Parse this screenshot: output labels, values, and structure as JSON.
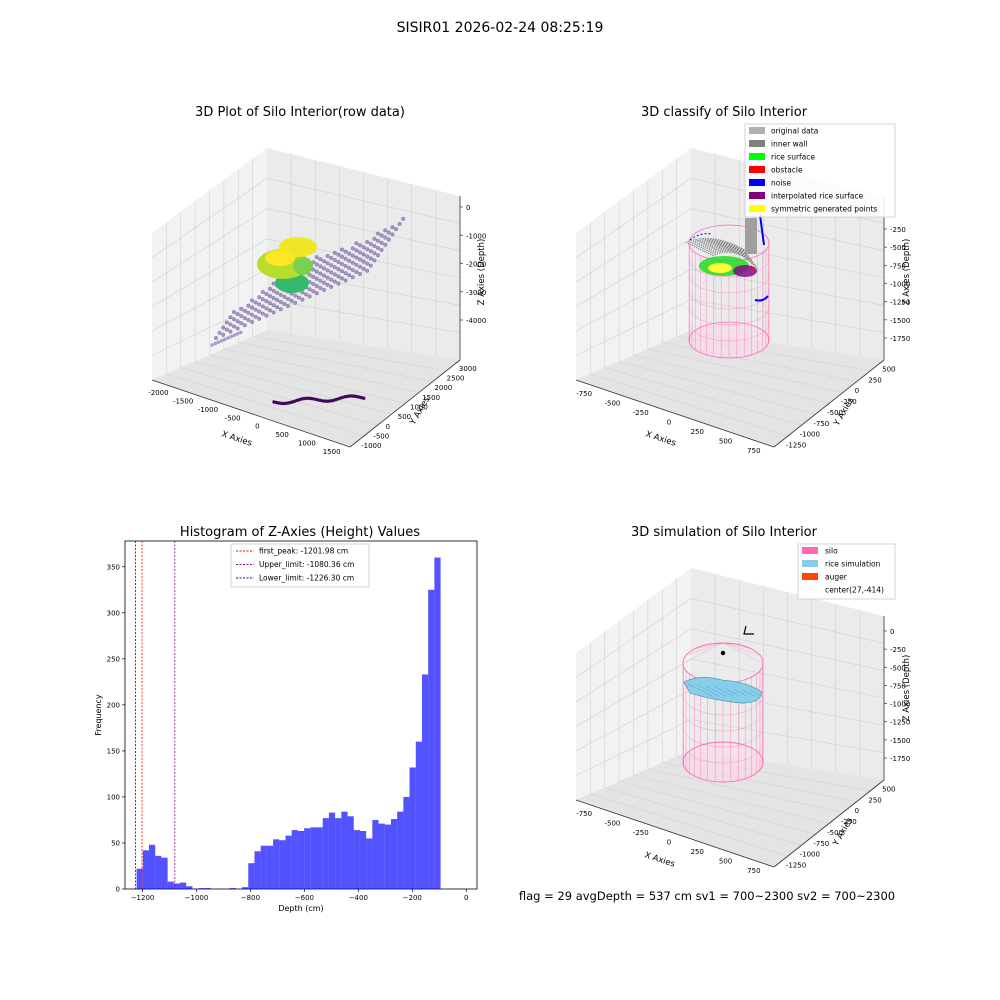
{
  "suptitle": "SISIR01 2026-02-24 08:25:19",
  "status_line": "flag = 29  avgDepth = 537 cm  sv1 = 700~2300  sv2 = 700~2300",
  "colors": {
    "silo": "#ff69b4",
    "rice_simulation": "#87ceeb",
    "auger": "#ff4500",
    "histogram_bar": "#0000ff",
    "first_peak": "#ff0000",
    "upper_limit": "#8b008b",
    "lower_limit": "#0000cd"
  },
  "chart_data": [
    {
      "type": "scatter",
      "title": "3D Plot of Silo Interior(row data)",
      "xlabel": "X Axies",
      "ylabel": "Y Axies",
      "zlabel": "Z Axies (Depth)",
      "x_ticks": [
        "-2000",
        "-1500",
        "-1000",
        "-500",
        "0",
        "500",
        "1000",
        "1500"
      ],
      "y_ticks": [
        "-1000",
        "-500",
        "0",
        "500",
        "1000",
        "1500",
        "2000",
        "2500",
        "3000"
      ],
      "z_ticks": [
        "0",
        "-1000",
        "-2000",
        "-3000",
        "-4000"
      ]
    },
    {
      "type": "scatter",
      "title": "3D classify of Silo Interior",
      "zlabel": "Z Axies (Depth)",
      "xlabel": "X Axies",
      "ylabel": "Y Axies",
      "x_ticks": [
        "-750",
        "-500",
        "-250",
        "0",
        "250",
        "500",
        "750"
      ],
      "y_ticks": [
        "-1250",
        "-1000",
        "-750",
        "-500",
        "-250",
        "0",
        "250",
        "500"
      ],
      "z_ticks": [
        "-250",
        "-500",
        "-750",
        "-1000",
        "-1250",
        "-1500",
        "-1750"
      ],
      "legend": [
        {
          "label": "original data",
          "color": "#b0b0b0"
        },
        {
          "label": "inner wall",
          "color": "#808080"
        },
        {
          "label": "rice surface",
          "color": "#00ff00"
        },
        {
          "label": "obstacle",
          "color": "#ff0000"
        },
        {
          "label": "noise",
          "color": "#0000ff"
        },
        {
          "label": "interpolated rice surface",
          "color": "#800080"
        },
        {
          "label": "symmetric generated points",
          "color": "#ffff00"
        }
      ]
    },
    {
      "type": "bar",
      "title": "Histogram of Z-Axies (Height) Values",
      "xlabel": "Depth (cm)",
      "ylabel": "Frequency",
      "xlim": [
        -1265,
        40
      ],
      "ylim": [
        0,
        378
      ],
      "x_ticks": [
        "-1200",
        "-1000",
        "-800",
        "-600",
        "-400",
        "-200",
        "0"
      ],
      "y_ticks": [
        "0",
        "50",
        "100",
        "150",
        "200",
        "250",
        "300",
        "350"
      ],
      "bin_width": 23,
      "bins": [
        {
          "x": -1222,
          "v": 22
        },
        {
          "x": -1199,
          "v": 42
        },
        {
          "x": -1176,
          "v": 48
        },
        {
          "x": -1153,
          "v": 36
        },
        {
          "x": -1130,
          "v": 34
        },
        {
          "x": -1107,
          "v": 8
        },
        {
          "x": -1084,
          "v": 6
        },
        {
          "x": -1061,
          "v": 7
        },
        {
          "x": -1038,
          "v": 3
        },
        {
          "x": -1015,
          "v": 0
        },
        {
          "x": -992,
          "v": 1
        },
        {
          "x": -969,
          "v": 1
        },
        {
          "x": -946,
          "v": 0
        },
        {
          "x": -923,
          "v": 0
        },
        {
          "x": -900,
          "v": 0
        },
        {
          "x": -877,
          "v": 1
        },
        {
          "x": -854,
          "v": 0
        },
        {
          "x": -831,
          "v": 2
        },
        {
          "x": -808,
          "v": 28
        },
        {
          "x": -785,
          "v": 41
        },
        {
          "x": -762,
          "v": 47
        },
        {
          "x": -739,
          "v": 47
        },
        {
          "x": -716,
          "v": 54
        },
        {
          "x": -693,
          "v": 53
        },
        {
          "x": -670,
          "v": 58
        },
        {
          "x": -647,
          "v": 64
        },
        {
          "x": -624,
          "v": 63
        },
        {
          "x": -601,
          "v": 66
        },
        {
          "x": -578,
          "v": 67
        },
        {
          "x": -555,
          "v": 67
        },
        {
          "x": -532,
          "v": 77
        },
        {
          "x": -509,
          "v": 83
        },
        {
          "x": -486,
          "v": 77
        },
        {
          "x": -463,
          "v": 84
        },
        {
          "x": -440,
          "v": 79
        },
        {
          "x": -417,
          "v": 64
        },
        {
          "x": -394,
          "v": 63
        },
        {
          "x": -371,
          "v": 55
        },
        {
          "x": -348,
          "v": 75
        },
        {
          "x": -325,
          "v": 71
        },
        {
          "x": -302,
          "v": 70
        },
        {
          "x": -279,
          "v": 76
        },
        {
          "x": -256,
          "v": 84
        },
        {
          "x": -233,
          "v": 100
        },
        {
          "x": -210,
          "v": 132
        },
        {
          "x": -187,
          "v": 160
        },
        {
          "x": -164,
          "v": 233
        },
        {
          "x": -141,
          "v": 325
        },
        {
          "x": -118,
          "v": 360
        }
      ],
      "ref_lines": [
        {
          "label": "first_peak: -1201.98 cm",
          "x": -1201.98,
          "color": "#ff0000"
        },
        {
          "label": "Upper_limit: -1080.36 cm",
          "x": -1080.36,
          "color": "#8b008b"
        },
        {
          "label": "Lower_limit: -1226.30 cm",
          "x": -1226.3,
          "color": "#0000cd"
        }
      ]
    },
    {
      "type": "scatter",
      "title": "3D simulation of Silo Interior",
      "zlabel": "Z Axies (Depth)",
      "xlabel": "X Axies",
      "ylabel": "Y Axies",
      "x_ticks": [
        "-750",
        "-500",
        "-250",
        "0",
        "250",
        "500",
        "750"
      ],
      "y_ticks": [
        "-1250",
        "-1000",
        "-750",
        "-500",
        "-250",
        "0",
        "250",
        "500"
      ],
      "z_ticks": [
        "0",
        "-250",
        "-500",
        "-750",
        "-1000",
        "-1250",
        "-1500",
        "-1750"
      ],
      "legend": [
        {
          "label": "silo",
          "color": "#ff69b4"
        },
        {
          "label": "rice simulation",
          "color": "#87ceeb"
        },
        {
          "label": "auger",
          "color": "#ff4500"
        },
        {
          "label": "center(27,-414)",
          "color": ""
        }
      ]
    }
  ]
}
